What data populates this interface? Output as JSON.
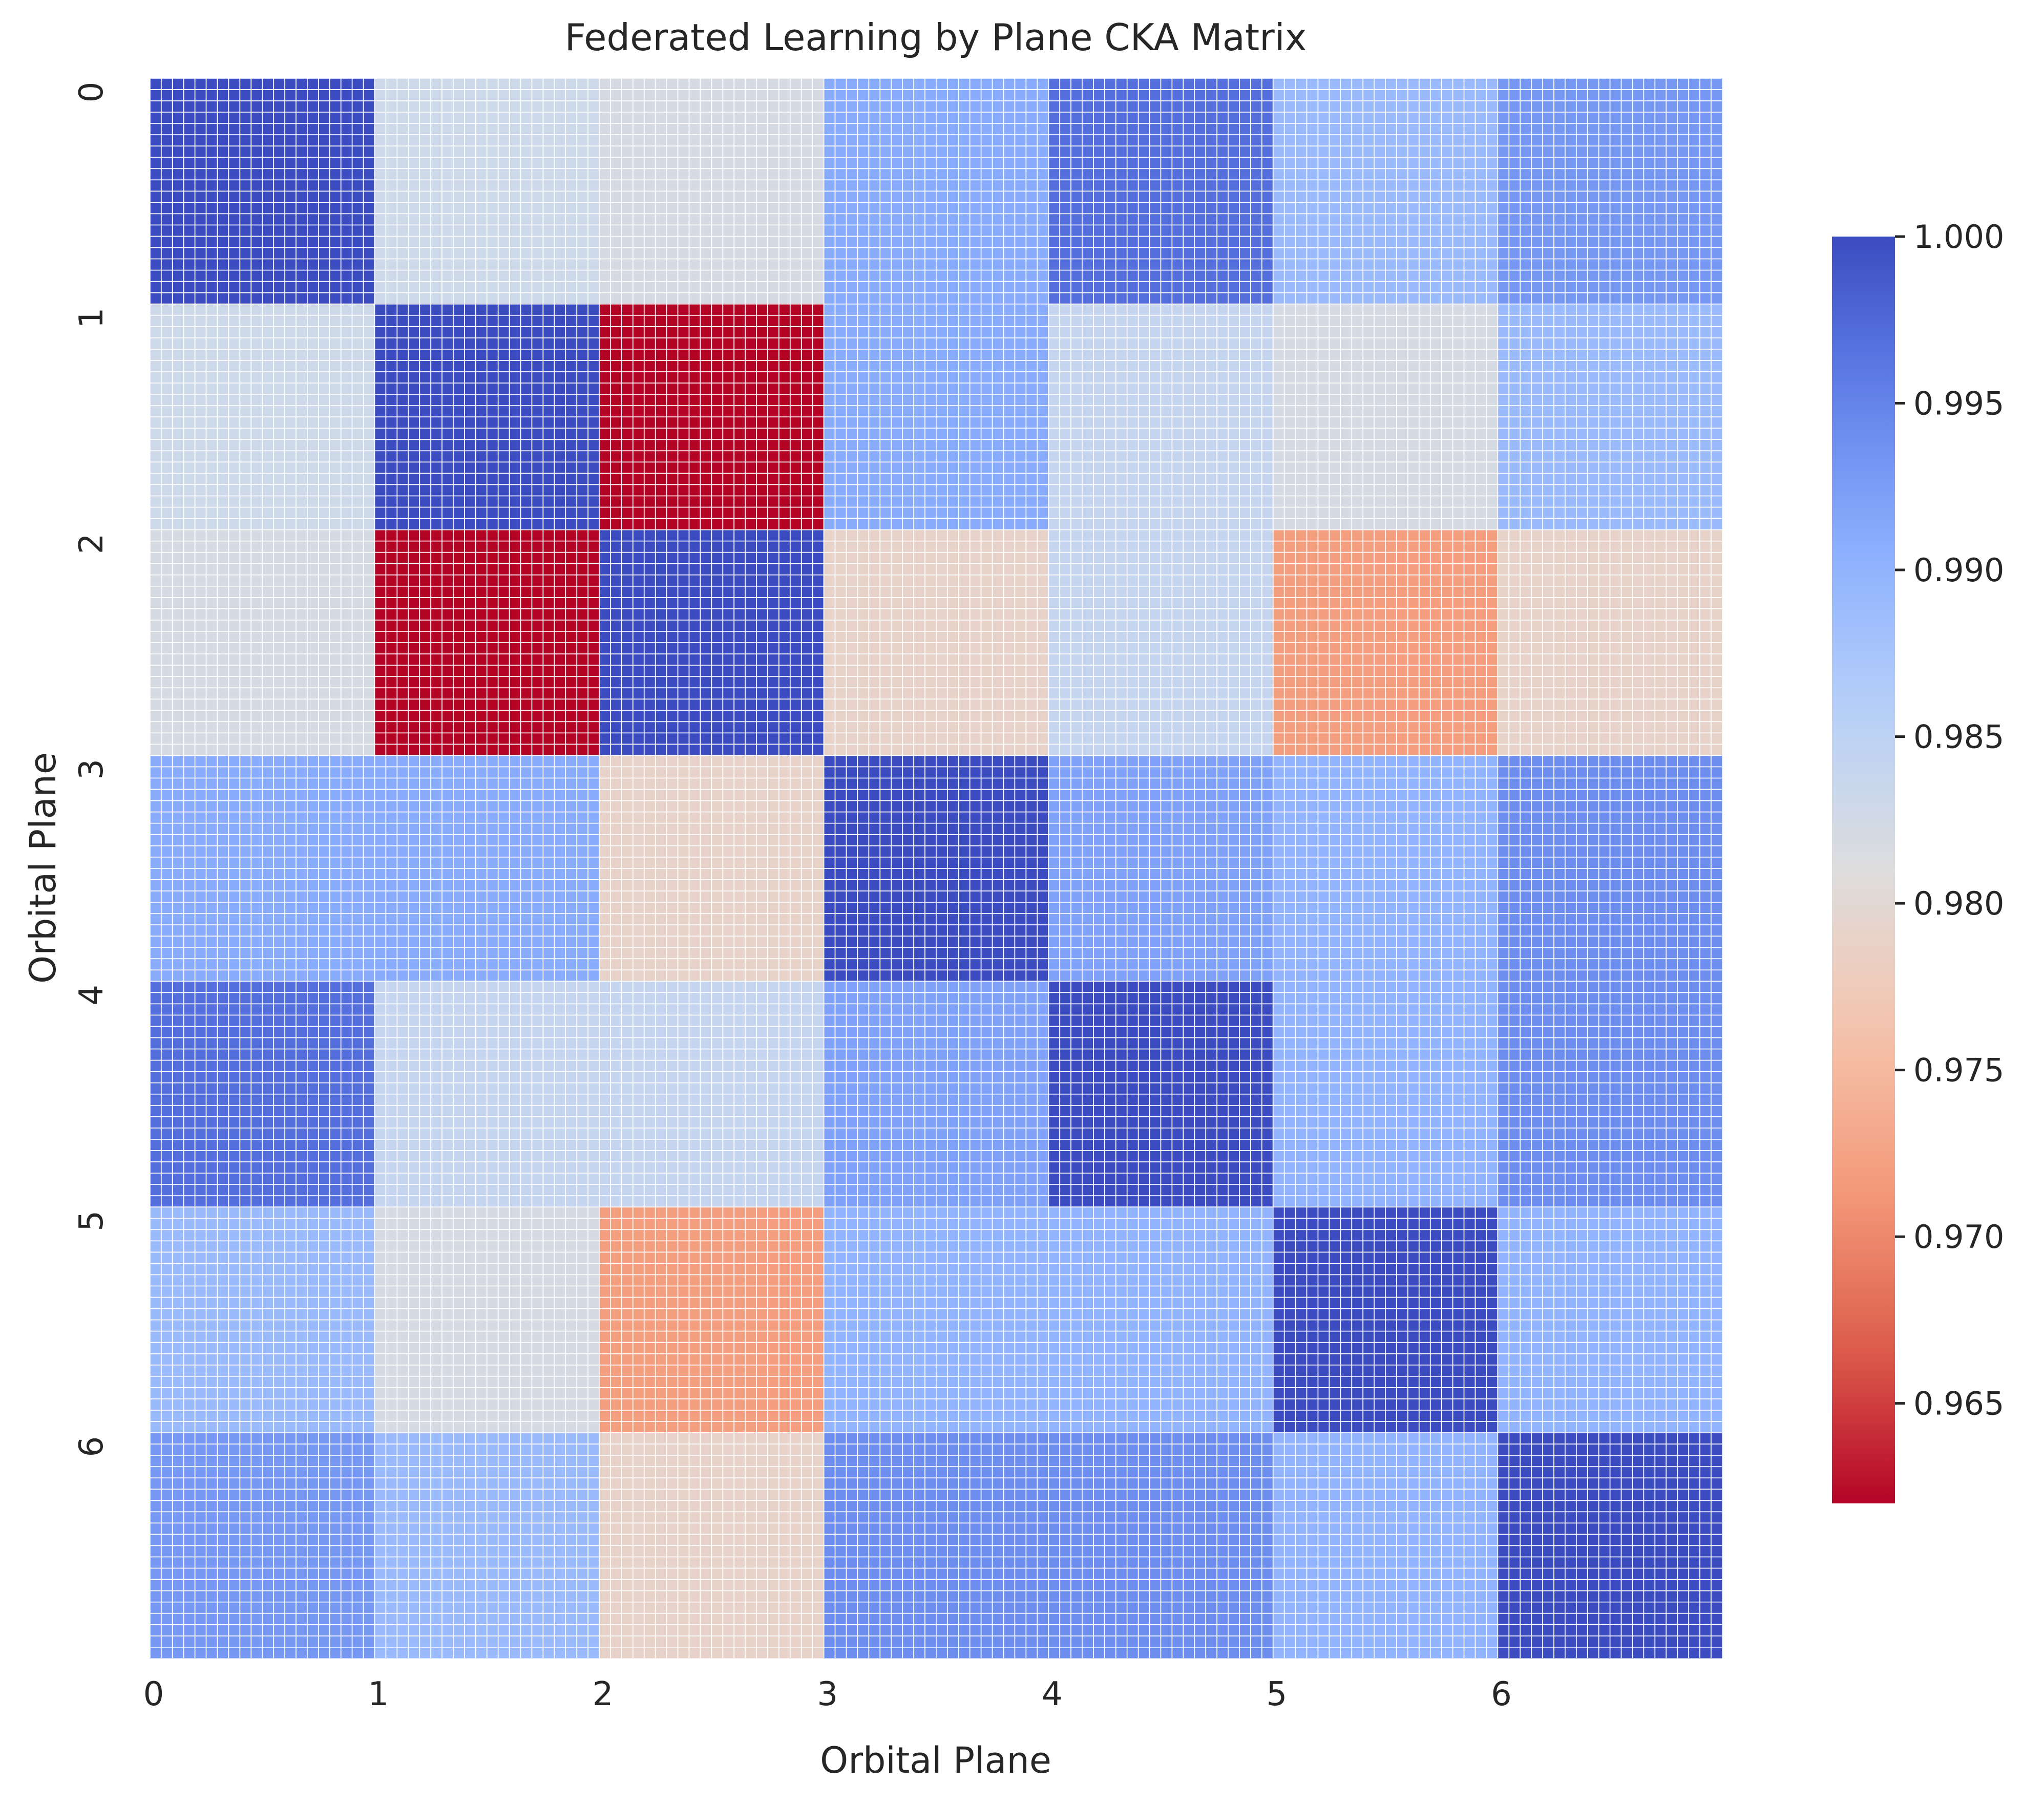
{
  "chart_data": {
    "type": "heatmap",
    "title": "Federated Learning by Plane CKA Matrix",
    "xlabel": "Orbital Plane",
    "ylabel": "Orbital Plane",
    "x_ticks": [
      "0",
      "1",
      "2",
      "3",
      "4",
      "5",
      "6"
    ],
    "y_ticks": [
      "0",
      "1",
      "2",
      "3",
      "4",
      "5",
      "6"
    ],
    "colormap": "coolwarm_r",
    "vmin": 0.962,
    "vmax": 1.0,
    "colorbar_ticks": [
      "1.000",
      "0.995",
      "0.990",
      "0.985",
      "0.980",
      "0.975",
      "0.970",
      "0.965"
    ],
    "colorbar_tick_values": [
      1.0,
      0.995,
      0.99,
      0.985,
      0.98,
      0.975,
      0.97,
      0.965
    ],
    "values": [
      [
        1.0,
        0.983,
        0.982,
        0.991,
        0.997,
        0.989,
        0.993
      ],
      [
        0.983,
        1.0,
        0.962,
        0.991,
        0.984,
        0.982,
        0.989
      ],
      [
        0.982,
        0.962,
        1.0,
        0.979,
        0.984,
        0.972,
        0.979
      ],
      [
        0.991,
        0.991,
        0.979,
        1.0,
        0.992,
        0.99,
        0.994
      ],
      [
        0.997,
        0.984,
        0.984,
        0.992,
        1.0,
        0.99,
        0.994
      ],
      [
        0.989,
        0.982,
        0.972,
        0.99,
        0.99,
        1.0,
        0.99
      ],
      [
        0.993,
        0.989,
        0.979,
        0.994,
        0.994,
        0.99,
        1.0
      ]
    ],
    "cell_subgrid": 20,
    "grid_lines": "white"
  }
}
